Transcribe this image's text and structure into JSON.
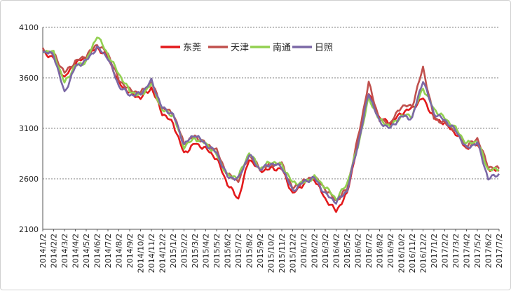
{
  "chart_data": {
    "type": "line",
    "title": "",
    "xlabel": "",
    "ylabel": "",
    "ylim": [
      2100,
      4100
    ],
    "yticks": [
      2100,
      2600,
      3100,
      3600,
      4100
    ],
    "grid": "horizontal-dashed",
    "legend_position": "top-center",
    "x_tick_labels": [
      "2014/1/2",
      "2014/2/2",
      "2014/3/2",
      "2014/4/2",
      "2014/5/2",
      "2014/6/2",
      "2014/7/2",
      "2014/8/2",
      "2014/9/2",
      "2014/10/2",
      "2014/11/2",
      "2014/12/2",
      "2015/1/2",
      "2015/2/2",
      "2015/3/2",
      "2015/4/2",
      "2015/5/2",
      "2015/6/2",
      "2015/7/2",
      "2015/8/2",
      "2015/9/2",
      "2015/10/2",
      "2015/11/2",
      "2015/12/2",
      "2016/1/2",
      "2016/2/2",
      "2016/3/2",
      "2016/4/2",
      "2016/5/2",
      "2016/6/2",
      "2016/7/2",
      "2016/8/2",
      "2016/9/2",
      "2016/10/2",
      "2016/11/2",
      "2016/12/2",
      "2017/1/2",
      "2017/2/2",
      "2017/3/2",
      "2017/4/2",
      "2017/5/2",
      "2017/6/2",
      "2017/7/2"
    ],
    "x": [
      "2014/1",
      "2014/2",
      "2014/3",
      "2014/4",
      "2014/5",
      "2014/6",
      "2014/7",
      "2014/8",
      "2014/9",
      "2014/10",
      "2014/11",
      "2014/12",
      "2015/1",
      "2015/2",
      "2015/3",
      "2015/4",
      "2015/5",
      "2015/6",
      "2015/7",
      "2015/8",
      "2015/9",
      "2015/10",
      "2015/11",
      "2015/12",
      "2016/1",
      "2016/2",
      "2016/3",
      "2016/4",
      "2016/5",
      "2016/6",
      "2016/7",
      "2016/8",
      "2016/9",
      "2016/10",
      "2016/11",
      "2016/12",
      "2017/1",
      "2017/2",
      "2017/3",
      "2017/4",
      "2017/5",
      "2017/6",
      "2017/7"
    ],
    "series": [
      {
        "name": "东莞",
        "color": "#e31a1c",
        "values": [
          3850,
          3800,
          3600,
          3750,
          3800,
          3900,
          3800,
          3550,
          3450,
          3400,
          3500,
          3250,
          3150,
          2850,
          2950,
          2900,
          2800,
          2550,
          2400,
          2800,
          2680,
          2700,
          2700,
          2450,
          2550,
          2600,
          2400,
          2280,
          2450,
          2950,
          3450,
          3200,
          3150,
          3250,
          3300,
          3400,
          3200,
          3150,
          3050,
          2900,
          2950,
          2700,
          2680
        ]
      },
      {
        "name": "天津",
        "color": "#c0504d",
        "values": [
          3880,
          3840,
          3650,
          3760,
          3820,
          3930,
          3840,
          3580,
          3480,
          3450,
          3560,
          3300,
          3250,
          2950,
          3020,
          2950,
          2880,
          2640,
          2580,
          2840,
          2700,
          2740,
          2750,
          2500,
          2580,
          2620,
          2500,
          2380,
          2500,
          3000,
          3550,
          3180,
          3150,
          3320,
          3320,
          3700,
          3200,
          3150,
          3080,
          2920,
          3000,
          2720,
          2700
        ]
      },
      {
        "name": "南通",
        "color": "#92d050",
        "values": [
          3870,
          3850,
          3550,
          3720,
          3760,
          4020,
          3830,
          3640,
          3470,
          3420,
          3540,
          3280,
          3230,
          2920,
          3000,
          2950,
          2840,
          2630,
          2620,
          2860,
          2700,
          2770,
          2740,
          2560,
          2560,
          2620,
          2520,
          2400,
          2550,
          2920,
          3400,
          3180,
          3120,
          3220,
          3230,
          3500,
          3290,
          3200,
          3100,
          2950,
          2970,
          2690,
          2690
        ]
      },
      {
        "name": "日照",
        "color": "#7b68a6",
        "values": [
          3860,
          3830,
          3450,
          3710,
          3770,
          3900,
          3800,
          3520,
          3430,
          3440,
          3570,
          3300,
          3240,
          2940,
          3040,
          2940,
          2860,
          2620,
          2600,
          2840,
          2690,
          2750,
          2720,
          2480,
          2570,
          2610,
          2450,
          2370,
          2480,
          2930,
          3450,
          3160,
          3100,
          3220,
          3200,
          3580,
          3250,
          3180,
          3080,
          2900,
          2960,
          2600,
          2650
        ]
      }
    ]
  }
}
